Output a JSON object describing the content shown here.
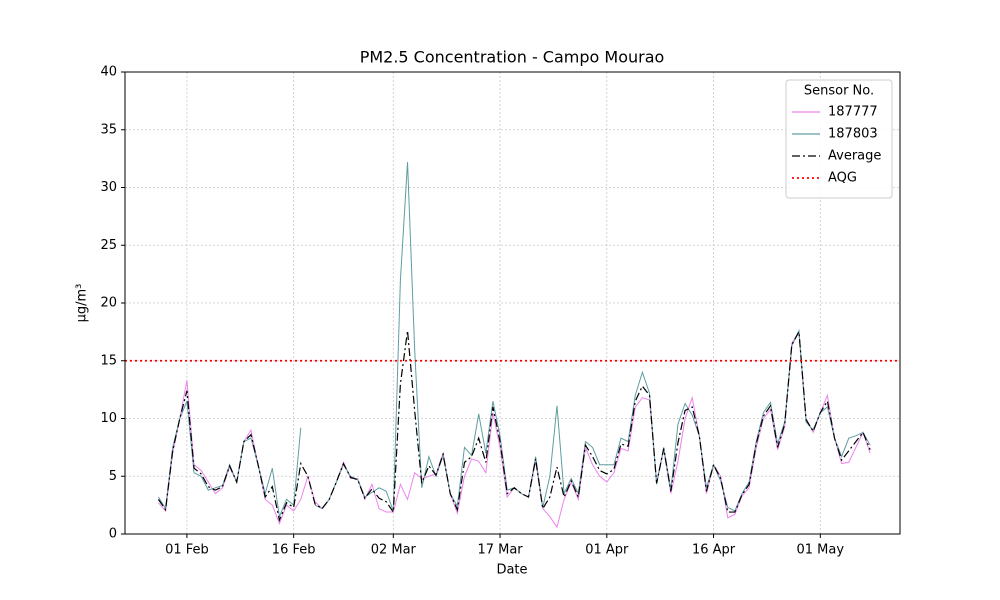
{
  "chart_data": {
    "type": "line",
    "title": "PM2.5 Concentration - Campo Mourao",
    "xlabel": "Date",
    "ylabel": "μg/m³",
    "x": [
      28,
      29,
      30,
      31,
      32,
      33,
      34,
      35,
      36,
      37,
      38,
      39,
      40,
      41,
      42,
      43,
      44,
      45,
      46,
      47,
      48,
      49,
      50,
      51,
      52,
      53,
      54,
      55,
      56,
      57,
      58,
      59,
      60,
      61,
      62,
      63,
      64,
      65,
      66,
      67,
      68,
      69,
      70,
      71,
      72,
      73,
      74,
      75,
      76,
      77,
      78,
      79,
      80,
      81,
      82,
      83,
      84,
      85,
      86,
      87,
      88,
      89,
      90,
      91,
      92,
      93,
      94,
      95,
      96,
      97,
      98,
      99,
      100,
      101,
      102,
      103,
      104,
      105,
      106,
      107,
      108,
      109,
      110,
      111,
      112,
      113,
      114,
      115,
      116,
      117,
      118,
      119,
      120,
      121,
      122,
      123,
      124,
      125,
      126,
      127,
      128
    ],
    "series": [
      {
        "name": "187777",
        "color": "#ee82ee",
        "linestyle": "solid",
        "values": [
          2.7,
          2.0,
          7,
          10,
          13.3,
          6.0,
          5.5,
          4.5,
          3.5,
          4,
          5.8,
          4.5,
          8,
          9,
          6,
          3,
          2.5,
          0.9,
          2.5,
          2,
          3,
          5.0,
          2.8,
          2.2,
          3,
          4.5,
          6.2,
          4.8,
          4.8,
          3.0,
          4.3,
          2.2,
          1.9,
          1.9,
          4.3,
          3,
          5.3,
          4.8,
          5,
          5.2,
          7,
          3.5,
          1.8,
          5,
          6.5,
          6.3,
          5.3,
          10.5,
          7.5,
          3.2,
          4,
          3.5,
          3.2,
          6.3,
          2.2,
          1.5,
          0.6,
          3,
          4.5,
          3,
          7.5,
          6,
          5,
          4.5,
          5.3,
          7.4,
          7.2,
          11,
          11.8,
          11.6,
          4.5,
          7.3,
          3.5,
          6.3,
          10,
          11.8,
          8.5,
          3.5,
          6,
          5,
          1.4,
          1.7,
          3.3,
          4,
          7.5,
          10,
          10.8,
          7.3,
          9.3,
          16.5,
          17.5,
          10,
          8.8,
          10.5,
          12,
          8.3,
          6.1,
          6.2,
          7.5,
          8.8,
          7
        ]
      },
      {
        "name": "187803",
        "color": "#5f9ea0",
        "linestyle": "solid",
        "values": [
          3.2,
          2.2,
          7.5,
          10,
          11.5,
          5.3,
          5.0,
          3.8,
          4.0,
          4.2,
          6,
          4.5,
          8,
          8.3,
          6,
          3.5,
          5.7,
          1.5,
          3,
          2.5,
          9.2,
          null,
          2.5,
          2.2,
          3,
          4.5,
          6.0,
          5,
          4.7,
          3.2,
          3.6,
          4,
          3.7,
          2,
          22,
          32.2,
          16,
          4,
          6.7,
          5,
          6.8,
          3.5,
          2.4,
          7.5,
          6.8,
          10.4,
          7,
          11.5,
          8.5,
          3.8,
          4,
          3.5,
          3.2,
          6.7,
          2.3,
          5,
          11.1,
          3.5,
          4.8,
          3.5,
          8,
          7.5,
          6,
          6,
          6,
          8.3,
          8,
          12,
          14,
          12.2,
          4.3,
          7.5,
          3.8,
          9.5,
          11.3,
          10.3,
          8.5,
          4,
          6,
          4.6,
          2.3,
          2,
          3.5,
          4.5,
          8,
          10.5,
          11.4,
          7.8,
          9.7,
          16.3,
          17.6,
          9.7,
          9,
          10.5,
          11,
          8.3,
          6.7,
          8.3,
          8.5,
          8.8,
          7.7
        ]
      },
      {
        "name": "Average",
        "color": "#000000",
        "linestyle": "dashdot",
        "values": [
          3.0,
          2.1,
          7.2,
          10,
          12.4,
          5.7,
          5.2,
          4.1,
          3.8,
          4.1,
          5.9,
          4.5,
          8,
          8.6,
          6,
          3.2,
          4.1,
          1.2,
          2.7,
          2.3,
          6.1,
          5.0,
          2.6,
          2.2,
          3,
          4.5,
          6.1,
          4.9,
          4.7,
          3.1,
          3.9,
          3.1,
          2.8,
          1.9,
          13,
          17.6,
          10.7,
          4.4,
          5.9,
          5.1,
          6.9,
          3.5,
          2.1,
          6.2,
          6.7,
          8.3,
          6.2,
          11,
          8,
          3.5,
          4,
          3.5,
          3.2,
          6.5,
          2.2,
          3.2,
          5.8,
          3.2,
          4.6,
          3.2,
          7.7,
          6.7,
          5.5,
          5.2,
          5.6,
          7.8,
          7.6,
          11.5,
          12.8,
          12,
          4.4,
          7.4,
          3.7,
          7.9,
          10.7,
          11,
          8.5,
          3.7,
          6,
          4.8,
          1.9,
          1.9,
          3.4,
          4.3,
          7.8,
          10.2,
          11.1,
          7.5,
          9.5,
          16.4,
          17.5,
          9.9,
          8.9,
          10.5,
          11.5,
          8.3,
          6.4,
          7.2,
          8,
          8.8,
          7.3
        ]
      }
    ],
    "hlines": [
      {
        "name": "AQG",
        "value": 15,
        "color": "#ff0000",
        "linestyle": "dotted"
      }
    ],
    "xlim": [
      23.3,
      132.2
    ],
    "xticks": [
      {
        "value": 32,
        "label": "01 Feb"
      },
      {
        "value": 47,
        "label": "16 Feb"
      },
      {
        "value": 61,
        "label": "02 Mar"
      },
      {
        "value": 76,
        "label": "17 Mar"
      },
      {
        "value": 91,
        "label": "01 Apr"
      },
      {
        "value": 106,
        "label": "16 Apr"
      },
      {
        "value": 121,
        "label": "01 May"
      }
    ],
    "ylim": [
      0,
      40
    ],
    "yticks": [
      0,
      5,
      10,
      15,
      20,
      25,
      30,
      35,
      40
    ],
    "grid": true,
    "legend_title": "Sensor No.",
    "legend": "upper right"
  }
}
